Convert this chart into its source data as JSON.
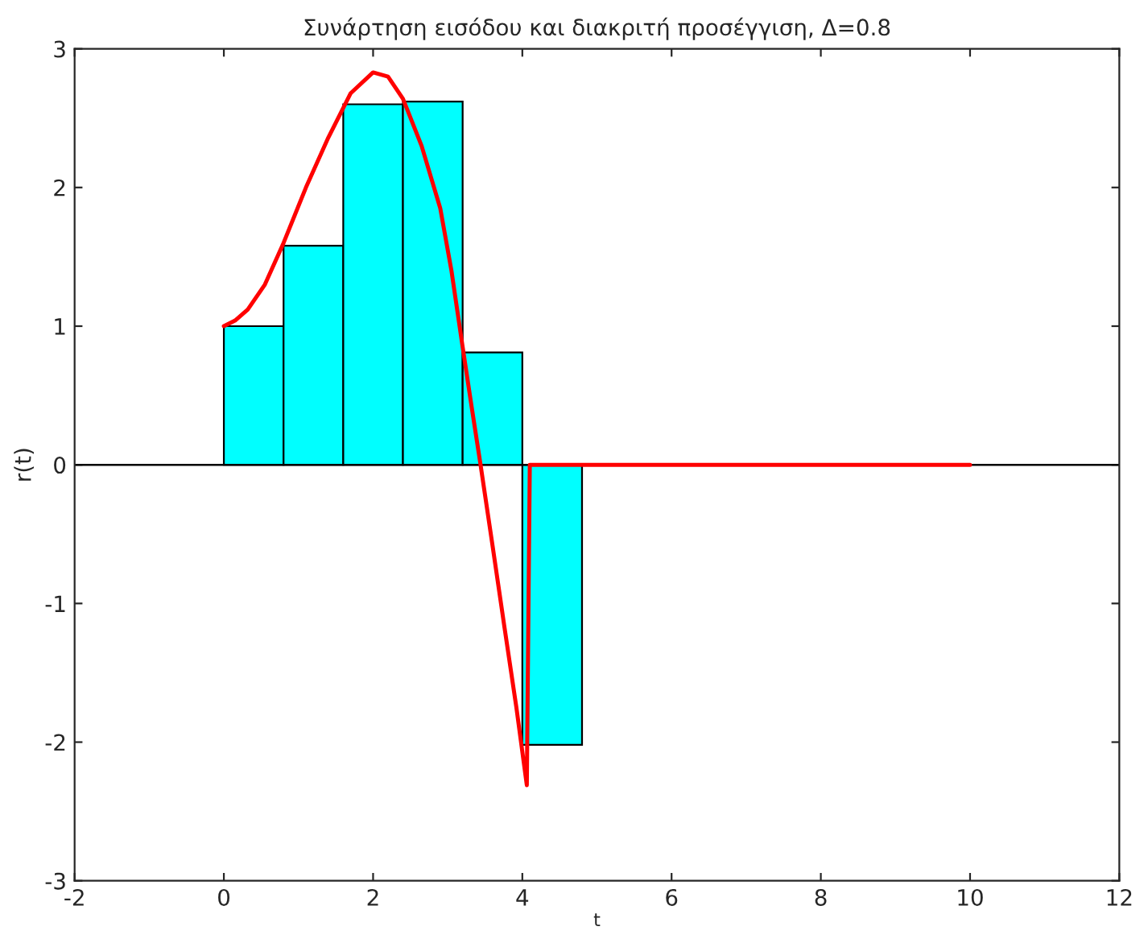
{
  "chart_data": {
    "type": "histogram",
    "title": "Συνάρτηση εισόδου και διακριτή προσέγγιση, Δ=0.8",
    "xlabel": "t",
    "ylabel": "r(t)",
    "series": [
      {
        "bins": [
          0,
          0.8,
          1.6,
          2.4,
          3.2,
          4.0,
          4.8
        ],
        "values": [
          1,
          1.58,
          2.6,
          2.62,
          0.81,
          -2.02
        ],
        "color": "#00ffff"
      },
      {
        "type": "line",
        "x": [
          0,
          0.15,
          0.32,
          0.55,
          0.8,
          1.1,
          1.4,
          1.7,
          2.0,
          2.2,
          2.4,
          2.65,
          2.9,
          3.05,
          3.2,
          3.32,
          3.44,
          3.6,
          3.76,
          3.92,
          4.06,
          4.1,
          6,
          8,
          10
        ],
        "values": [
          1,
          1.04,
          1.12,
          1.3,
          1.6,
          2.0,
          2.36,
          2.68,
          2.83,
          2.8,
          2.64,
          2.3,
          1.85,
          1.4,
          0.85,
          0.42,
          0,
          -0.58,
          -1.17,
          -1.75,
          -2.31,
          0,
          0,
          0,
          0
        ],
        "color": "#ff0000"
      }
    ],
    "ref_lines": [
      {
        "axis": "y",
        "value": 0,
        "color": "#000000"
      }
    ],
    "xlim": [
      -2,
      12
    ],
    "ylim": [
      -3,
      3
    ],
    "xticks": [
      -2,
      0,
      2,
      4,
      6,
      8,
      10,
      12
    ],
    "yticks": [
      -3,
      -2,
      -1,
      0,
      1,
      2,
      3
    ],
    "grid": false,
    "legend": false
  }
}
